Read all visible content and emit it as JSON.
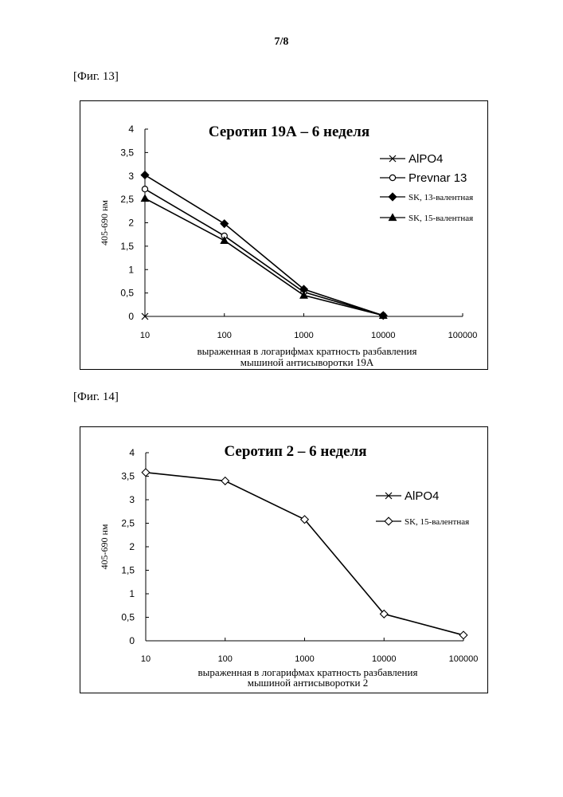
{
  "page": {
    "number": "7/8"
  },
  "figures": [
    {
      "label": "[Фиг. 13]"
    },
    {
      "label": "[Фиг. 14]"
    }
  ],
  "chart_data": [
    {
      "type": "line",
      "title": "Серотип 19А – 6 неделя",
      "ylabel": "405-690 нм",
      "xlabel_lines": [
        "выраженная в логарифмах кратность разбавления",
        "мышиной антисыворотки 19А"
      ],
      "x_scale": "log",
      "x_ticks": [
        "10",
        "100",
        "1000",
        "10000",
        "100000"
      ],
      "x": [
        10,
        100,
        1000,
        10000
      ],
      "y_ticks": [
        "0",
        "0,5",
        "1",
        "1,5",
        "2",
        "2,5",
        "3",
        "3,5",
        "4"
      ],
      "ylim": [
        0,
        4
      ],
      "grid": false,
      "legend_position": "right",
      "series": [
        {
          "name": "AlPO4",
          "marker": "x",
          "values": [
            0,
            null,
            null,
            null
          ]
        },
        {
          "name": "Prevnar 13",
          "marker": "circle-open",
          "values": [
            2.72,
            1.72,
            0.52,
            0.02
          ]
        },
        {
          "name": "SK, 13-валентная",
          "marker": "diamond-filled",
          "values": [
            3.02,
            1.98,
            0.58,
            0.02
          ]
        },
        {
          "name": "SK, 15-валентная",
          "marker": "triangle-filled",
          "values": [
            2.52,
            1.62,
            0.45,
            0.02
          ]
        }
      ]
    },
    {
      "type": "line",
      "title": "Серотип 2 – 6 неделя",
      "ylabel": "405-690 нм",
      "xlabel_lines": [
        "выраженная в логарифмах кратность разбавления",
        "мышиной антисыворотки 2"
      ],
      "x_scale": "log",
      "x_ticks": [
        "10",
        "100",
        "1000",
        "10000",
        "100000"
      ],
      "x": [
        10,
        100,
        1000,
        10000,
        100000
      ],
      "y_ticks": [
        "0",
        "0,5",
        "1",
        "1,5",
        "2",
        "2,5",
        "3",
        "3,5",
        "4"
      ],
      "ylim": [
        0,
        4
      ],
      "grid": false,
      "legend_position": "right",
      "series": [
        {
          "name": "AlPO4",
          "marker": "x",
          "values": [
            null,
            null,
            null,
            null,
            null
          ]
        },
        {
          "name": "SK, 15-валентная",
          "marker": "diamond-open",
          "values": [
            3.58,
            3.4,
            2.58,
            0.57,
            0.12
          ]
        }
      ]
    }
  ]
}
